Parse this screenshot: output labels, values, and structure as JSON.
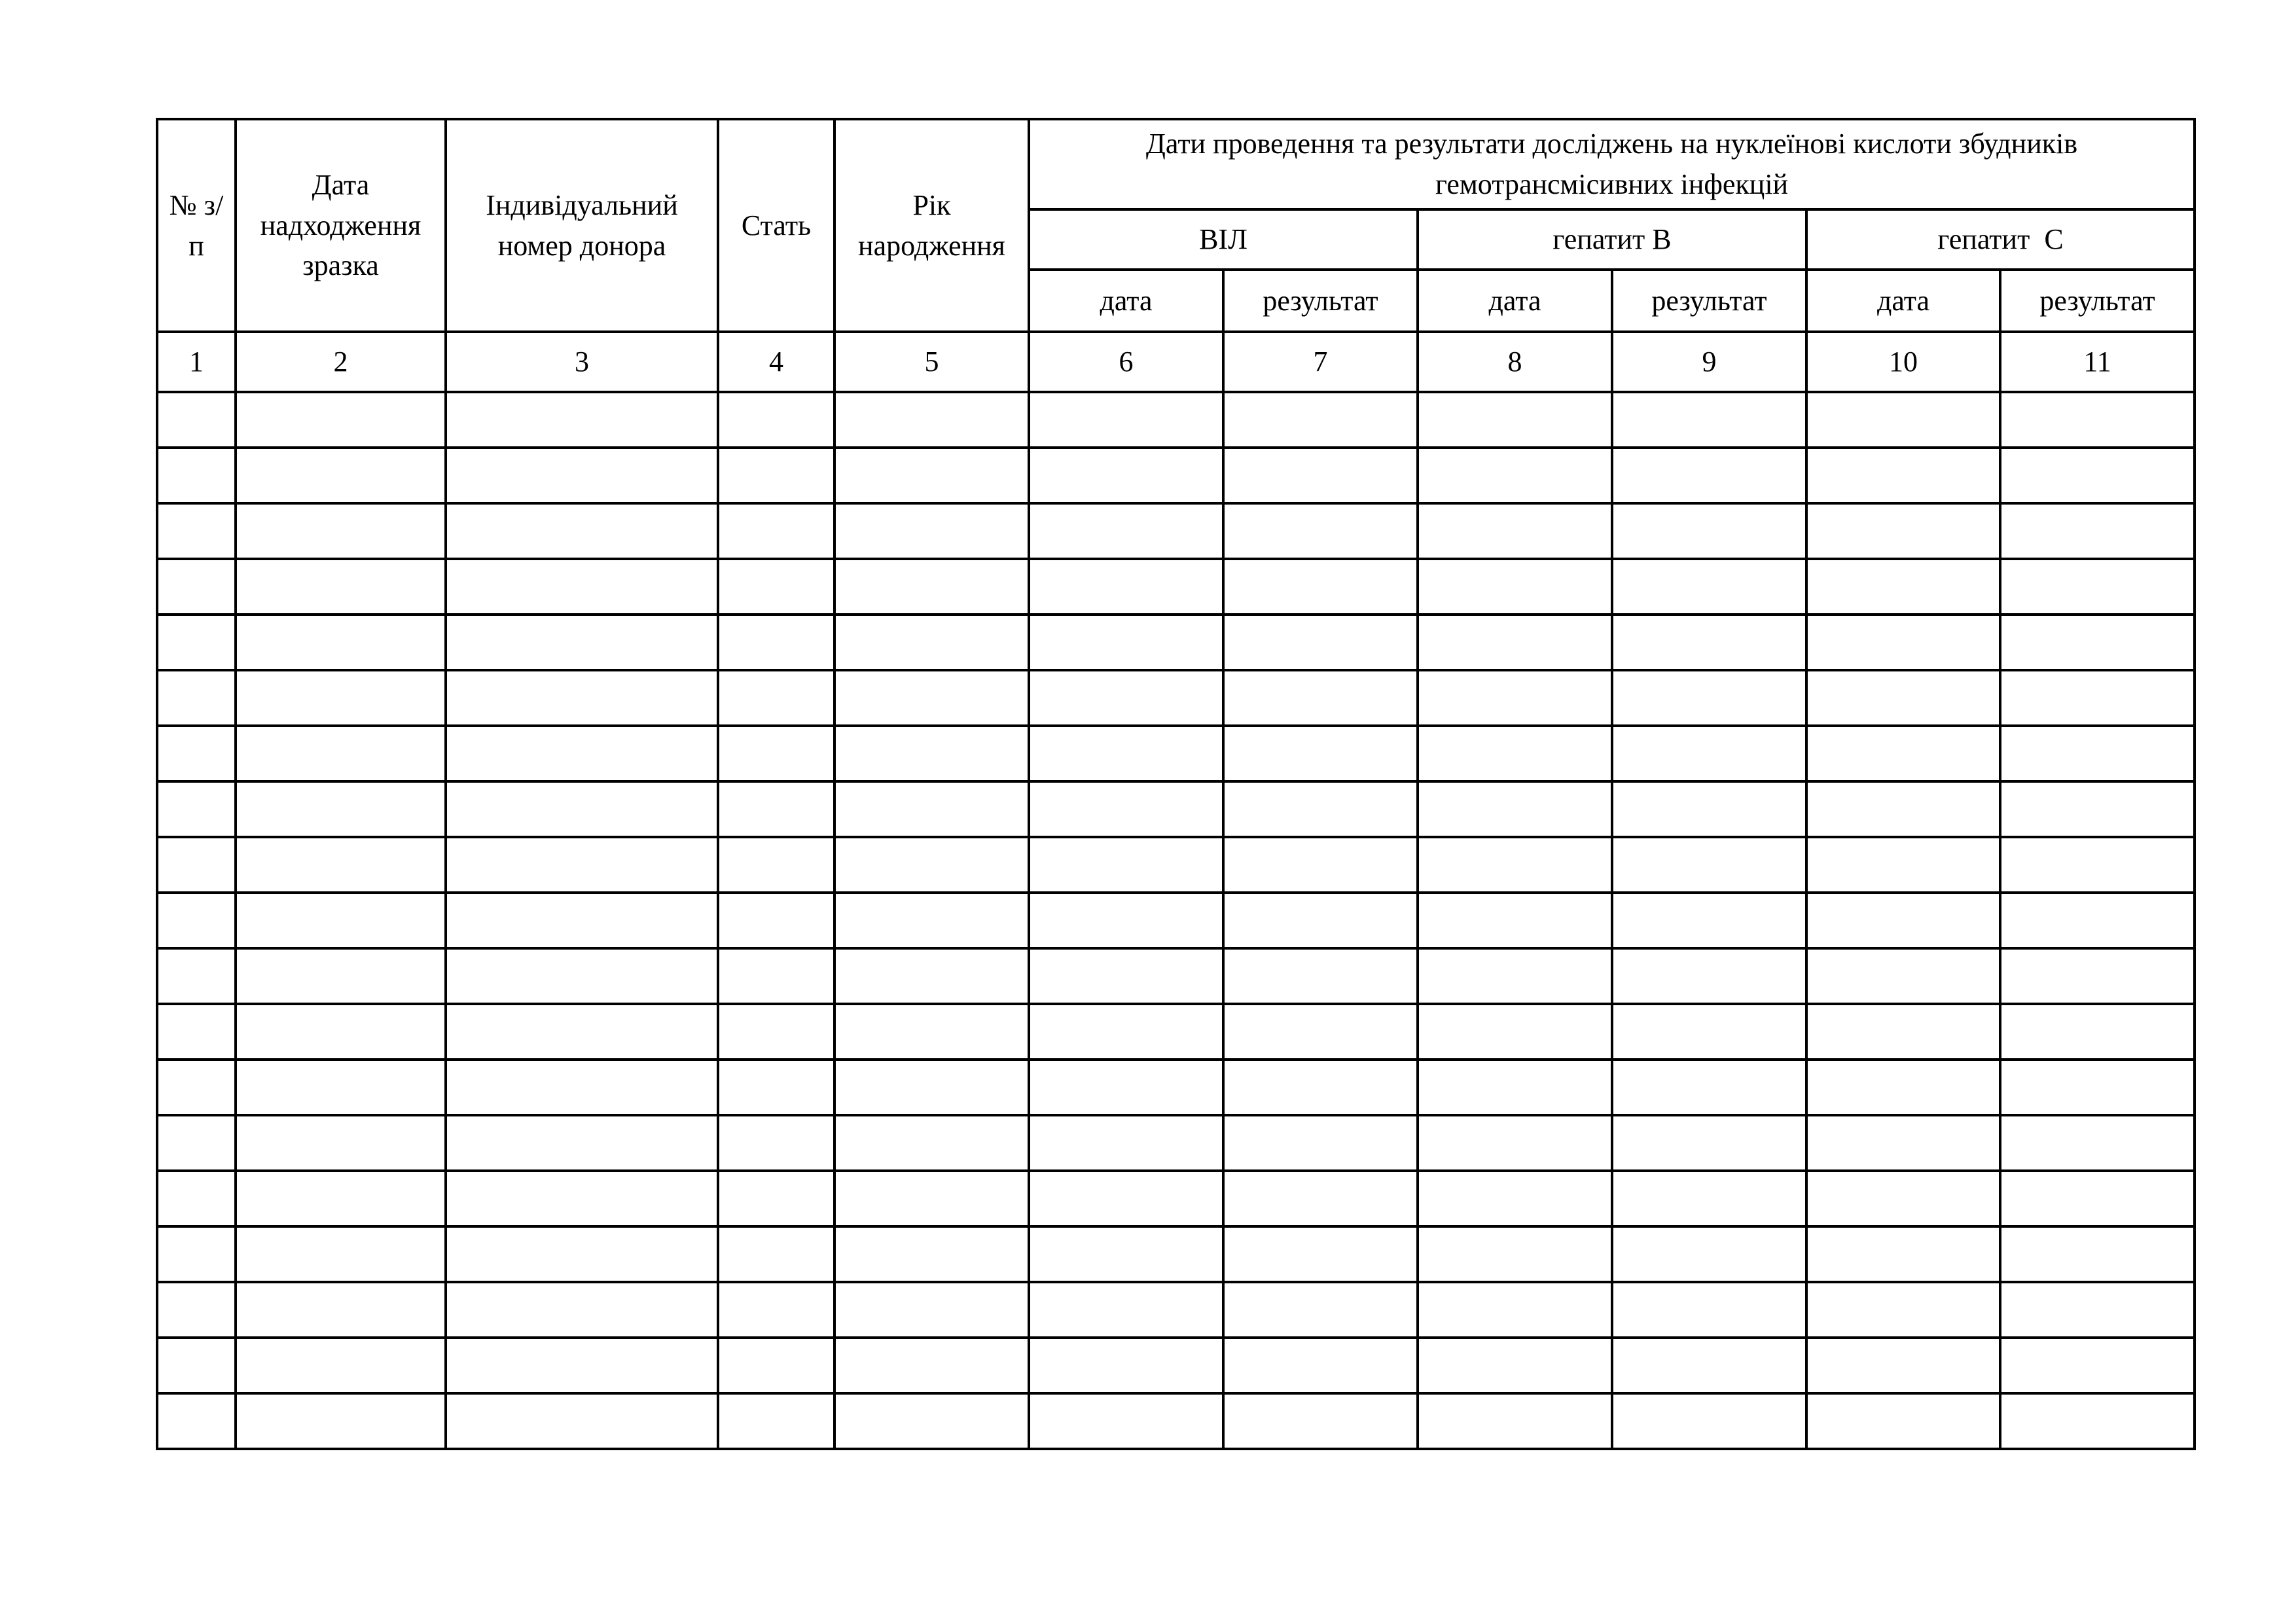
{
  "table": {
    "headers": {
      "number": "№ з/п",
      "sample_date": "Дата надходження зразка",
      "donor_id": "Індивідуальний номер донора",
      "sex": "Стать",
      "birth_year": "Рік народження",
      "research_group": "Дати проведення та результати досліджень на нуклеїнові кислоти збудників гемотрансмісивних інфекцій",
      "infections": [
        "ВІЛ",
        "гепатит В",
        "гепатит  С"
      ],
      "date_label": "дата",
      "result_label": "результат"
    },
    "column_numbers": [
      "1",
      "2",
      "3",
      "4",
      "5",
      "6",
      "7",
      "8",
      "9",
      "10",
      "11"
    ],
    "empty_rows": 19
  }
}
